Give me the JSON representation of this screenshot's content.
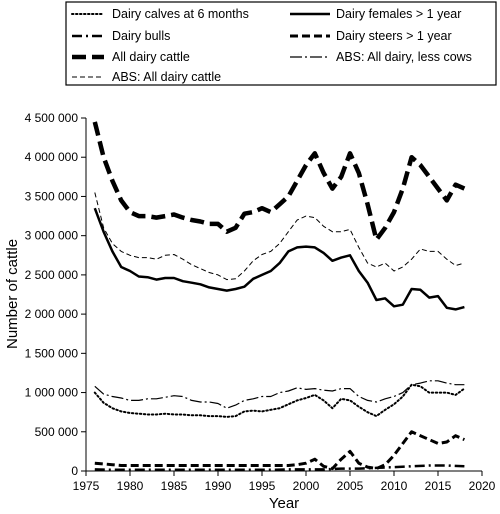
{
  "chart_data": {
    "type": "line",
    "xlabel": "Year",
    "ylabel": "Number of cattle",
    "xlim": [
      1975,
      2020
    ],
    "ylim": [
      0,
      4500000
    ],
    "x_ticks": [
      1975,
      1980,
      1985,
      1990,
      1995,
      2000,
      2005,
      2010,
      2015,
      2020
    ],
    "y_ticks": [
      0,
      500000,
      1000000,
      1500000,
      2000000,
      2500000,
      3000000,
      3500000,
      4000000,
      4500000
    ],
    "y_tick_labels": [
      "0",
      "500 000",
      "1 000 000",
      "1 500 000",
      "2 000 000",
      "2 500 000",
      "3 000 000",
      "3 500 000",
      "4 000 000",
      "4 500 000"
    ],
    "grid": false,
    "legend_position": "top",
    "series": [
      {
        "name": "Dairy calves at 6 months",
        "style": "dotted",
        "x": [
          1976,
          1977,
          1978,
          1979,
          1980,
          1981,
          1982,
          1983,
          1984,
          1985,
          1986,
          1987,
          1988,
          1989,
          1990,
          1991,
          1992,
          1993,
          1994,
          1995,
          1996,
          1997,
          1998,
          1999,
          2000,
          2001,
          2002,
          2003,
          2004,
          2005,
          2006,
          2007,
          2008,
          2009,
          2010,
          2011,
          2012,
          2013,
          2014,
          2015,
          2016,
          2017,
          2018
        ],
        "values": [
          1000000,
          870000,
          800000,
          760000,
          740000,
          730000,
          720000,
          720000,
          730000,
          720000,
          720000,
          710000,
          710000,
          700000,
          700000,
          690000,
          700000,
          760000,
          770000,
          760000,
          780000,
          800000,
          850000,
          900000,
          930000,
          970000,
          900000,
          800000,
          920000,
          900000,
          820000,
          750000,
          700000,
          780000,
          850000,
          950000,
          1100000,
          1080000,
          1000000,
          1000000,
          1000000,
          970000,
          1050000
        ]
      },
      {
        "name": "Dairy females > 1 year",
        "style": "solid",
        "x": [
          1976,
          1977,
          1978,
          1979,
          1980,
          1981,
          1982,
          1983,
          1984,
          1985,
          1986,
          1987,
          1988,
          1989,
          1990,
          1991,
          1992,
          1993,
          1994,
          1995,
          1996,
          1997,
          1998,
          1999,
          2000,
          2001,
          2002,
          2003,
          2004,
          2005,
          2006,
          2007,
          2008,
          2009,
          2010,
          2011,
          2012,
          2013,
          2014,
          2015,
          2016,
          2017,
          2018
        ],
        "values": [
          3350000,
          3050000,
          2800000,
          2600000,
          2550000,
          2480000,
          2470000,
          2440000,
          2460000,
          2460000,
          2420000,
          2400000,
          2380000,
          2340000,
          2320000,
          2300000,
          2320000,
          2350000,
          2450000,
          2500000,
          2550000,
          2650000,
          2800000,
          2850000,
          2860000,
          2850000,
          2780000,
          2680000,
          2720000,
          2750000,
          2550000,
          2400000,
          2180000,
          2200000,
          2100000,
          2120000,
          2320000,
          2310000,
          2210000,
          2230000,
          2080000,
          2060000,
          2090000
        ]
      },
      {
        "name": "Dairy bulls",
        "style": "dash-dot",
        "x": [
          1976,
          1978,
          1980,
          1982,
          1984,
          1986,
          1988,
          1990,
          1992,
          1994,
          1996,
          1998,
          2000,
          2002,
          2004,
          2006,
          2008,
          2010,
          2012,
          2014,
          2016,
          2018
        ],
        "values": [
          20000,
          15000,
          15000,
          15000,
          15000,
          15000,
          15000,
          15000,
          15000,
          15000,
          15000,
          20000,
          20000,
          20000,
          30000,
          30000,
          40000,
          50000,
          60000,
          70000,
          70000,
          60000
        ]
      },
      {
        "name": "Dairy steers > 1 year",
        "style": "dashed",
        "x": [
          1976,
          1977,
          1978,
          1979,
          1980,
          1981,
          1982,
          1983,
          1984,
          1985,
          1986,
          1987,
          1988,
          1989,
          1990,
          1991,
          1992,
          1993,
          1994,
          1995,
          1996,
          1997,
          1998,
          1999,
          2000,
          2001,
          2002,
          2003,
          2004,
          2005,
          2006,
          2007,
          2008,
          2009,
          2010,
          2011,
          2012,
          2013,
          2014,
          2015,
          2016,
          2017,
          2018
        ],
        "values": [
          100000,
          90000,
          80000,
          70000,
          70000,
          70000,
          70000,
          70000,
          70000,
          70000,
          70000,
          70000,
          70000,
          70000,
          70000,
          70000,
          70000,
          70000,
          70000,
          70000,
          70000,
          70000,
          70000,
          80000,
          100000,
          150000,
          60000,
          30000,
          150000,
          250000,
          100000,
          50000,
          30000,
          80000,
          200000,
          350000,
          500000,
          450000,
          400000,
          350000,
          370000,
          450000,
          400000
        ]
      },
      {
        "name": "All dairy cattle",
        "style": "long-dash",
        "x": [
          1976,
          1977,
          1978,
          1979,
          1980,
          1981,
          1982,
          1983,
          1984,
          1985,
          1986,
          1987,
          1988,
          1989,
          1990,
          1991,
          1992,
          1993,
          1994,
          1995,
          1996,
          1997,
          1998,
          1999,
          2000,
          2001,
          2002,
          2003,
          2004,
          2005,
          2006,
          2007,
          2008,
          2009,
          2010,
          2011,
          2012,
          2013,
          2014,
          2015,
          2016,
          2017,
          2018
        ],
        "values": [
          4450000,
          4000000,
          3700000,
          3450000,
          3300000,
          3250000,
          3250000,
          3230000,
          3250000,
          3270000,
          3230000,
          3200000,
          3180000,
          3150000,
          3150000,
          3050000,
          3100000,
          3280000,
          3300000,
          3350000,
          3300000,
          3400000,
          3500000,
          3700000,
          3900000,
          4050000,
          3800000,
          3600000,
          3750000,
          4050000,
          3800000,
          3400000,
          2950000,
          3100000,
          3300000,
          3600000,
          4000000,
          3900000,
          3750000,
          3600000,
          3450000,
          3650000,
          3600000
        ]
      },
      {
        "name": "ABS: All dairy, less cows",
        "style": "long-dash-dot",
        "x": [
          1976,
          1977,
          1978,
          1979,
          1980,
          1981,
          1982,
          1983,
          1984,
          1985,
          1986,
          1987,
          1988,
          1989,
          1990,
          1991,
          1992,
          1993,
          1994,
          1995,
          1996,
          1997,
          1998,
          1999,
          2000,
          2001,
          2002,
          2003,
          2004,
          2005,
          2006,
          2007,
          2008,
          2009,
          2010,
          2011,
          2012,
          2013,
          2014,
          2015,
          2016,
          2017,
          2018
        ],
        "values": [
          1080000,
          980000,
          950000,
          930000,
          900000,
          900000,
          920000,
          920000,
          940000,
          960000,
          950000,
          900000,
          880000,
          880000,
          860000,
          800000,
          840000,
          900000,
          920000,
          950000,
          950000,
          1000000,
          1020000,
          1060000,
          1040000,
          1050000,
          1030000,
          1020000,
          1050000,
          1050000,
          950000,
          900000,
          880000,
          920000,
          950000,
          1000000,
          1100000,
          1120000,
          1150000,
          1150000,
          1120000,
          1100000,
          1100000
        ]
      },
      {
        "name": "ABS: All dairy cattle",
        "style": "thin-dash",
        "x": [
          1976,
          1977,
          1978,
          1979,
          1980,
          1981,
          1982,
          1983,
          1984,
          1985,
          1986,
          1987,
          1988,
          1989,
          1990,
          1991,
          1992,
          1993,
          1994,
          1995,
          1996,
          1997,
          1998,
          1999,
          2000,
          2001,
          2002,
          2003,
          2004,
          2005,
          2006,
          2007,
          2008,
          2009,
          2010,
          2011,
          2012,
          2013,
          2014,
          2015,
          2016,
          2017,
          2018
        ],
        "values": [
          3550000,
          3100000,
          2900000,
          2800000,
          2750000,
          2720000,
          2720000,
          2700000,
          2750000,
          2760000,
          2700000,
          2630000,
          2580000,
          2530000,
          2500000,
          2440000,
          2450000,
          2550000,
          2680000,
          2760000,
          2800000,
          2900000,
          3050000,
          3200000,
          3250000,
          3230000,
          3120000,
          3050000,
          3050000,
          3080000,
          2850000,
          2650000,
          2600000,
          2650000,
          2550000,
          2600000,
          2700000,
          2830000,
          2800000,
          2800000,
          2700000,
          2620000,
          2650000
        ]
      }
    ]
  }
}
